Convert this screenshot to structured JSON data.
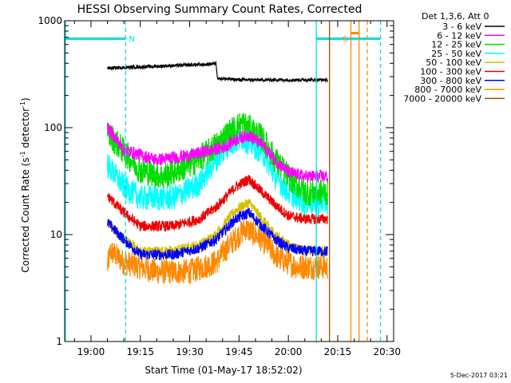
{
  "chart_data": {
    "type": "line",
    "title": "HESSI Observing Summary Count Rates, Corrected",
    "ylabel_main": "Corrected Count Rate (s",
    "ylabel_sup1": "-1",
    "ylabel_mid": " detector",
    "ylabel_sup2": "-1",
    "ylabel_end": ")",
    "xlabel": "Start Time (01-May-17 18:52:02)",
    "footer": "5-Dec-2017 03:21",
    "y_scale": "log",
    "ylim": [
      1,
      1000
    ],
    "y_ticks": [
      {
        "value": 1,
        "label": "1"
      },
      {
        "value": 10,
        "label": "10"
      },
      {
        "value": 100,
        "label": "100"
      },
      {
        "value": 1000,
        "label": "1000"
      }
    ],
    "xlim": [
      "18:52",
      "20:32"
    ],
    "x_ticks": [
      {
        "t": "19:00",
        "label": "19:00"
      },
      {
        "t": "19:15",
        "label": "19:15"
      },
      {
        "t": "19:30",
        "label": "19:30"
      },
      {
        "t": "19:45",
        "label": "19:45"
      },
      {
        "t": "20:00",
        "label": "20:00"
      },
      {
        "t": "20:15",
        "label": "20:15"
      },
      {
        "t": "20:30",
        "label": "20:30"
      }
    ],
    "legend": {
      "placement": "right",
      "title": "Det 1,3,6, Att 0",
      "entries": [
        {
          "label": "3 - 6 keV",
          "color": "#000000"
        },
        {
          "label": "6 - 12 keV",
          "color": "#ff00ff"
        },
        {
          "label": "12 - 25 keV",
          "color": "#00dd00"
        },
        {
          "label": "25 - 50 keV",
          "color": "#00ffff"
        },
        {
          "label": "50 - 100 keV",
          "color": "#d4c000"
        },
        {
          "label": "100 - 300 keV",
          "color": "#ee0000"
        },
        {
          "label": "300 - 800 keV",
          "color": "#0000ff"
        },
        {
          "label": "800 - 7000 keV",
          "color": "#ff8800"
        },
        {
          "label": "7000 - 20000 keV",
          "color": "#a05000"
        }
      ]
    },
    "series": [
      {
        "color": "#ff8800",
        "noise": 0.12,
        "points": [
          [
            "19:05",
            5
          ],
          [
            "19:06",
            7
          ],
          [
            "19:10",
            5.5
          ],
          [
            "19:20",
            4.5
          ],
          [
            "19:30",
            4.5
          ],
          [
            "19:38",
            5.5
          ],
          [
            "19:42",
            8
          ],
          [
            "19:47",
            11.5
          ],
          [
            "19:52",
            9
          ],
          [
            "19:57",
            6
          ],
          [
            "20:03",
            5
          ],
          [
            "20:12",
            5
          ]
        ]
      },
      {
        "color": "#d4c000",
        "noise": 0.05,
        "points": [
          [
            "19:05",
            13
          ],
          [
            "19:10",
            9
          ],
          [
            "19:15",
            7
          ],
          [
            "19:25",
            7
          ],
          [
            "19:33",
            8
          ],
          [
            "19:38",
            10
          ],
          [
            "19:44",
            17
          ],
          [
            "19:48",
            20
          ],
          [
            "19:52",
            14
          ],
          [
            "19:56",
            10
          ],
          [
            "20:00",
            8
          ],
          [
            "20:05",
            7
          ],
          [
            "20:12",
            7
          ]
        ]
      },
      {
        "color": "#0000ff",
        "noise": 0.05,
        "points": [
          [
            "19:05",
            13
          ],
          [
            "19:10",
            9
          ],
          [
            "19:15",
            6.5
          ],
          [
            "19:25",
            6.5
          ],
          [
            "19:33",
            7.5
          ],
          [
            "19:38",
            9
          ],
          [
            "19:44",
            14
          ],
          [
            "19:48",
            16
          ],
          [
            "19:52",
            12
          ],
          [
            "19:56",
            9
          ],
          [
            "20:00",
            7.5
          ],
          [
            "20:05",
            7
          ],
          [
            "20:12",
            7
          ]
        ]
      },
      {
        "color": "#ee0000",
        "noise": 0.05,
        "points": [
          [
            "19:05",
            23
          ],
          [
            "19:10",
            16
          ],
          [
            "19:15",
            12
          ],
          [
            "19:25",
            12
          ],
          [
            "19:33",
            14
          ],
          [
            "19:38",
            18
          ],
          [
            "19:44",
            28
          ],
          [
            "19:48",
            33
          ],
          [
            "19:52",
            25
          ],
          [
            "19:56",
            19
          ],
          [
            "20:00",
            15
          ],
          [
            "20:05",
            14
          ],
          [
            "20:12",
            14
          ]
        ]
      },
      {
        "color": "#00ffff",
        "noise": 0.12,
        "points": [
          [
            "19:05",
            45
          ],
          [
            "19:10",
            28
          ],
          [
            "19:15",
            22
          ],
          [
            "19:25",
            22
          ],
          [
            "19:33",
            30
          ],
          [
            "19:38",
            50
          ],
          [
            "19:42",
            70
          ],
          [
            "19:46",
            80
          ],
          [
            "19:52",
            60
          ],
          [
            "19:56",
            35
          ],
          [
            "20:00",
            25
          ],
          [
            "20:05",
            20
          ],
          [
            "20:12",
            20
          ]
        ]
      },
      {
        "color": "#00dd00",
        "noise": 0.13,
        "points": [
          [
            "19:05",
            90
          ],
          [
            "19:10",
            60
          ],
          [
            "19:15",
            40
          ],
          [
            "19:22",
            35
          ],
          [
            "19:30",
            45
          ],
          [
            "19:36",
            60
          ],
          [
            "19:42",
            90
          ],
          [
            "19:46",
            110
          ],
          [
            "19:52",
            80
          ],
          [
            "19:56",
            50
          ],
          [
            "20:00",
            35
          ],
          [
            "20:05",
            25
          ],
          [
            "20:12",
            25
          ]
        ]
      },
      {
        "color": "#ff00ff",
        "noise": 0.06,
        "points": [
          [
            "19:05",
            100
          ],
          [
            "19:10",
            62
          ],
          [
            "19:20",
            50
          ],
          [
            "19:30",
            55
          ],
          [
            "19:35",
            60
          ],
          [
            "19:40",
            65
          ],
          [
            "19:45",
            80
          ],
          [
            "19:48",
            85
          ],
          [
            "19:52",
            70
          ],
          [
            "19:56",
            50
          ],
          [
            "20:00",
            38
          ],
          [
            "20:05",
            35
          ],
          [
            "20:12",
            35
          ]
        ]
      },
      {
        "color": "#000000",
        "noise": 0.015,
        "points": [
          [
            "19:05",
            360
          ],
          [
            "19:15",
            370
          ],
          [
            "19:25",
            380
          ],
          [
            "19:35",
            390
          ],
          [
            "19:38",
            400
          ],
          [
            "19:38.5",
            290
          ],
          [
            "19:45",
            280
          ],
          [
            "19:55",
            280
          ],
          [
            "20:05",
            280
          ],
          [
            "20:12",
            280
          ]
        ]
      }
    ],
    "vertical_lines": [
      {
        "t": "18:52.2",
        "color": "#00dddd",
        "style": "solid"
      },
      {
        "t": "19:10.5",
        "color": "#00dddd",
        "style": "dashed"
      },
      {
        "t": "20:08.5",
        "color": "#00dddd",
        "style": "solid"
      },
      {
        "t": "20:12.5",
        "color": "#a05000",
        "style": "solid"
      },
      {
        "t": "20:19",
        "color": "#ff8800",
        "style": "solid"
      },
      {
        "t": "20:21.5",
        "color": "#ff8800",
        "style": "solid"
      },
      {
        "t": "20:24",
        "color": "#ff8800",
        "style": "dashed"
      },
      {
        "t": "20:28",
        "color": "#00dddd",
        "style": "dashed"
      }
    ],
    "night_bars": [
      {
        "start": "18:52",
        "end": "19:10.5",
        "color": "#00dddd"
      },
      {
        "start": "20:08.5",
        "end": "20:28",
        "color": "#00dddd"
      }
    ],
    "annotations": [
      {
        "text": "N",
        "t": "19:11.5",
        "color": "#00dddd"
      },
      {
        "text": "S",
        "t": "20:16.5",
        "color": "#ff8800"
      }
    ],
    "saa_bar": {
      "start": "20:19",
      "end": "20:21.5",
      "color": "#ff8800"
    }
  }
}
